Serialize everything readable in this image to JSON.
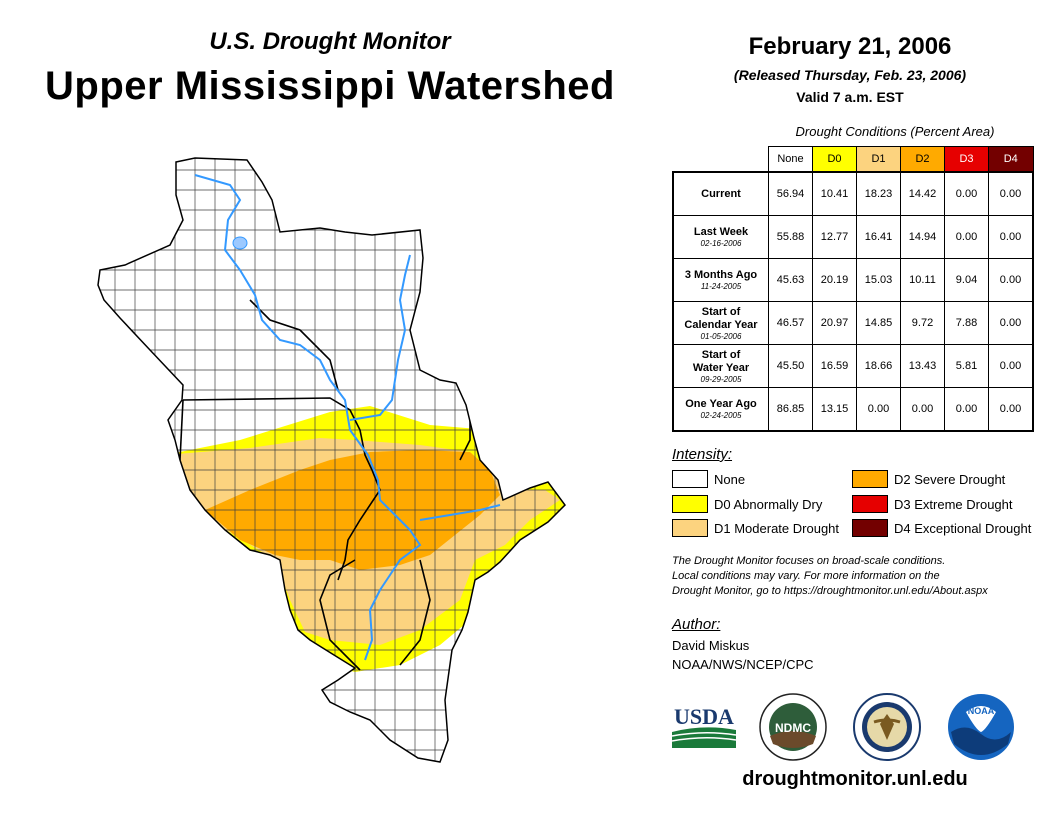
{
  "header": {
    "subtitle": "U.S. Drought Monitor",
    "title": "Upper Mississippi Watershed",
    "date": "February 21, 2006",
    "released": "(Released Thursday, Feb. 23, 2006)",
    "valid": "Valid 7 a.m. EST"
  },
  "table": {
    "caption": "Drought Conditions (Percent Area)",
    "columns": [
      "None",
      "D0",
      "D1",
      "D2",
      "D3",
      "D4"
    ],
    "column_colors": [
      "#ffffff",
      "#ffff00",
      "#fcd37f",
      "#ffaa00",
      "#e60000",
      "#730000"
    ],
    "rows": [
      {
        "label": "Current",
        "label2": "",
        "sub": "",
        "values": [
          "56.94",
          "10.41",
          "18.23",
          "14.42",
          "0.00",
          "0.00"
        ]
      },
      {
        "label": "Last Week",
        "label2": "",
        "sub": "02-16-2006",
        "values": [
          "55.88",
          "12.77",
          "16.41",
          "14.94",
          "0.00",
          "0.00"
        ]
      },
      {
        "label": "3 Months Ago",
        "label2": "",
        "sub": "11-24-2005",
        "values": [
          "45.63",
          "20.19",
          "15.03",
          "10.11",
          "9.04",
          "0.00"
        ]
      },
      {
        "label": "Start of",
        "label2": "Calendar Year",
        "sub": "01-05-2006",
        "values": [
          "46.57",
          "20.97",
          "14.85",
          "9.72",
          "7.88",
          "0.00"
        ]
      },
      {
        "label": "Start of",
        "label2": "Water Year",
        "sub": "09-29-2005",
        "values": [
          "45.50",
          "16.59",
          "18.66",
          "13.43",
          "5.81",
          "0.00"
        ]
      },
      {
        "label": "One Year Ago",
        "label2": "",
        "sub": "02-24-2005",
        "values": [
          "86.85",
          "13.15",
          "0.00",
          "0.00",
          "0.00",
          "0.00"
        ]
      }
    ]
  },
  "legend": {
    "heading": "Intensity:",
    "items": [
      {
        "label": "None",
        "color": "#ffffff"
      },
      {
        "label": "D0 Abnormally Dry",
        "color": "#ffff00"
      },
      {
        "label": "D1 Moderate Drought",
        "color": "#fcd37f"
      },
      {
        "label": "D2 Severe Drought",
        "color": "#ffaa00"
      },
      {
        "label": "D3 Extreme Drought",
        "color": "#e60000"
      },
      {
        "label": "D4 Exceptional Drought",
        "color": "#730000"
      }
    ]
  },
  "note": {
    "line1": "The Drought Monitor focuses on broad-scale conditions.",
    "line2": "Local conditions may vary. For more information on the",
    "line3": "Drought Monitor, go to https://droughtmonitor.unl.edu/About.aspx"
  },
  "author": {
    "heading": "Author:",
    "name": "David Miskus",
    "org": "NOAA/NWS/NCEP/CPC"
  },
  "logos": {
    "usda": "USDA",
    "ndmc": "NDMC",
    "noaa": "NOAA"
  },
  "footer_url": "droughtmonitor.unl.edu",
  "colors": {
    "river": "#3399ff",
    "county_line": "#404040"
  }
}
